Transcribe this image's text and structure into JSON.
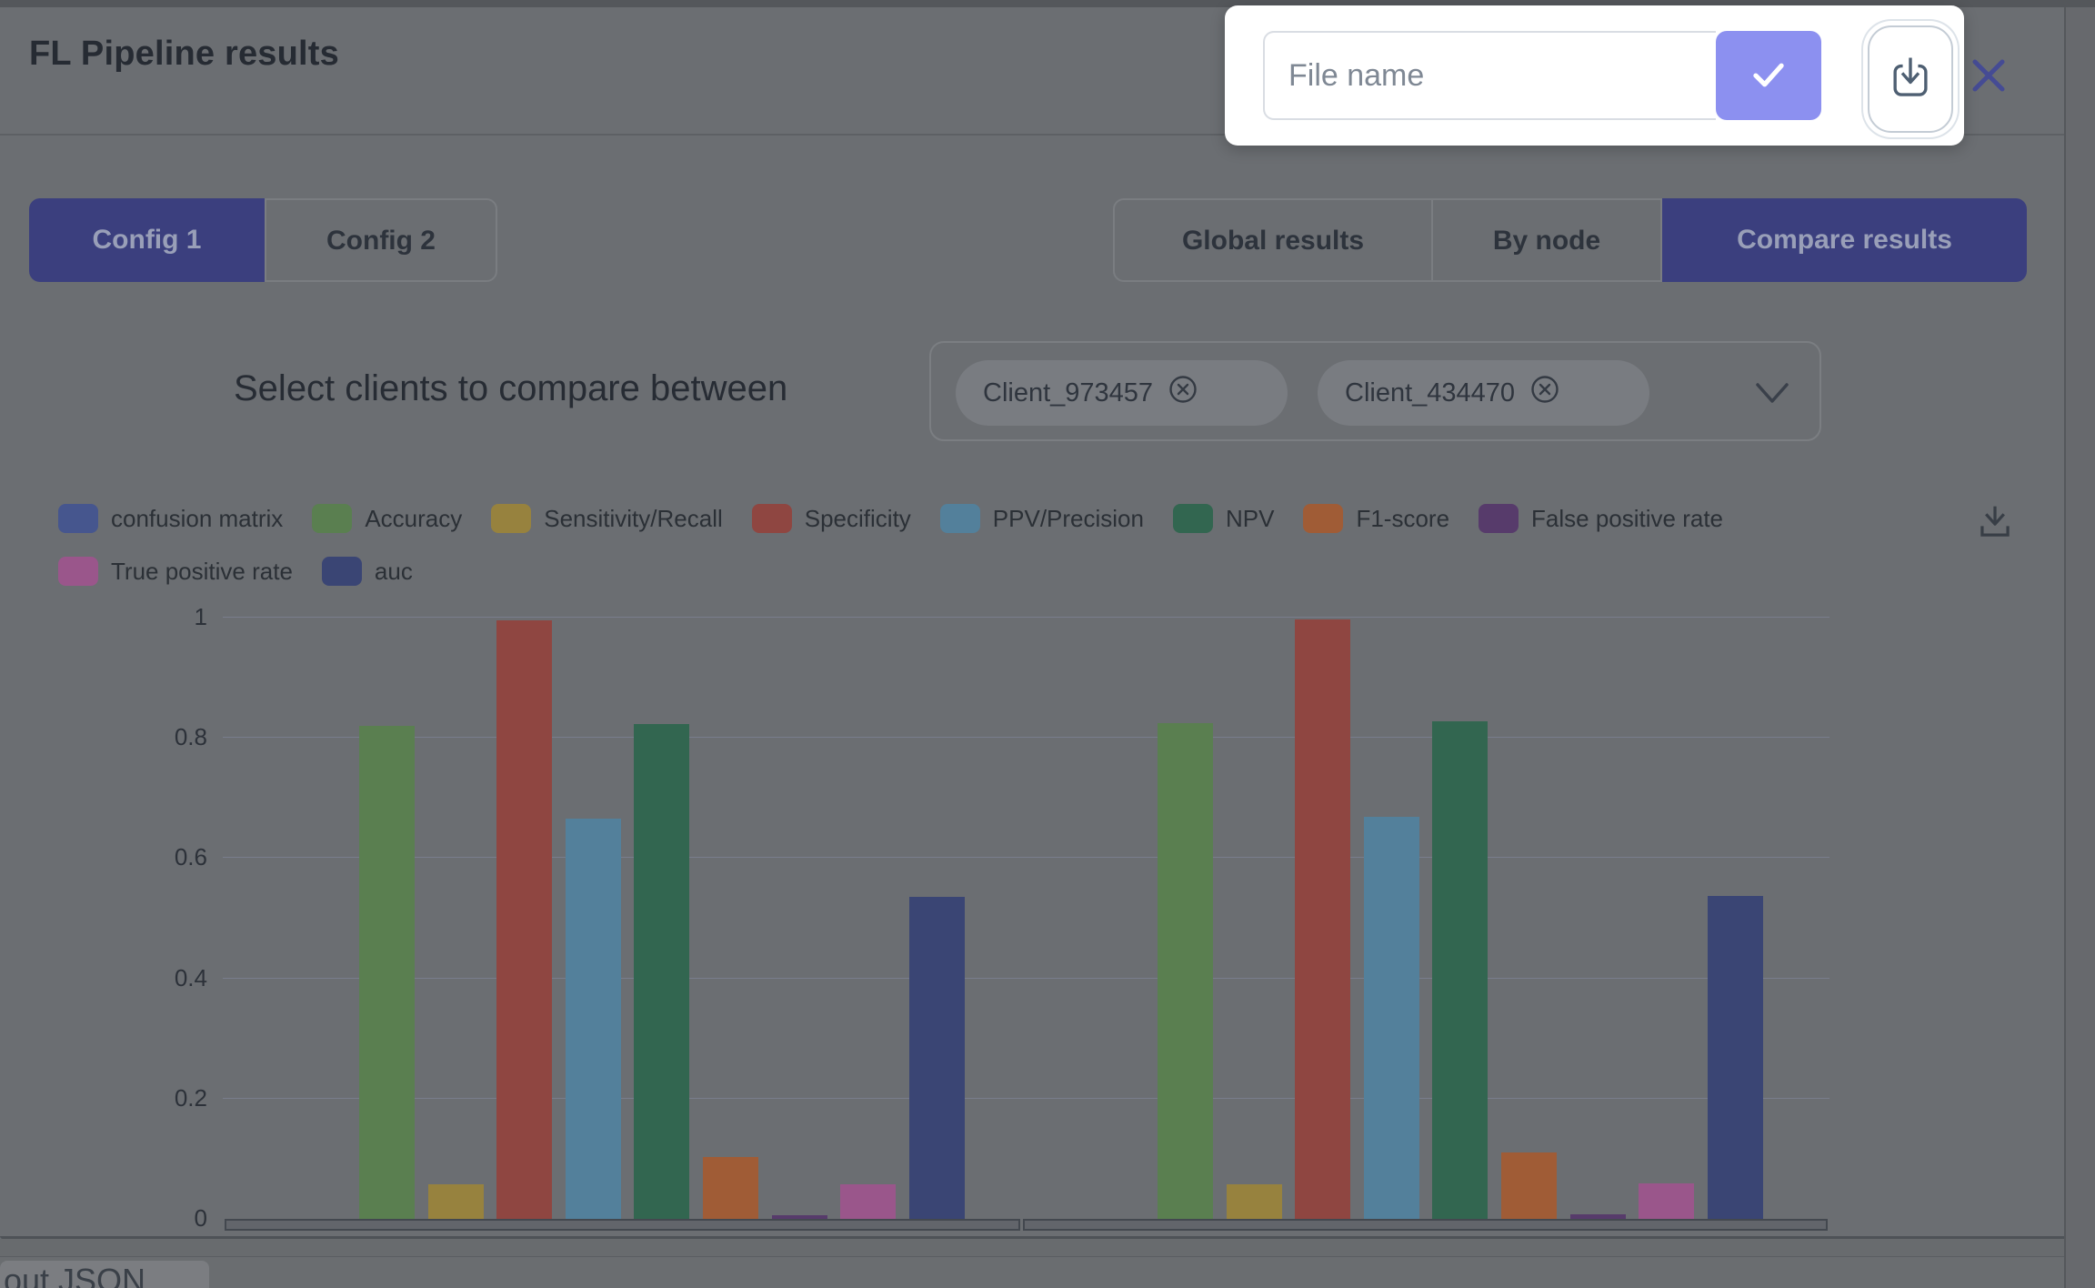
{
  "header": {
    "title": "FL Pipeline results"
  },
  "spotlight": {
    "file_name_input": {
      "placeholder": "File name",
      "value": ""
    },
    "confirm_button": {
      "icon": "check-icon"
    },
    "download_button": {
      "icon": "download-icon"
    }
  },
  "close_button": {
    "icon": "close-icon"
  },
  "config_tabs": [
    {
      "label": "Config 1",
      "active": true
    },
    {
      "label": "Config 2",
      "active": false
    }
  ],
  "view_tabs": [
    {
      "label": "Global results",
      "active": false
    },
    {
      "label": "By node",
      "active": false
    },
    {
      "label": "Compare results",
      "active": true
    }
  ],
  "client_select": {
    "label": "Select clients to compare between",
    "chips": [
      "Client_973457",
      "Client_434470"
    ],
    "chevron": "chevron-down-icon",
    "remove_icon": "circle-x-icon"
  },
  "chart_toolbar": {
    "download_icon": "chart-download-icon"
  },
  "footer": {
    "partial_tab_text": "out JSON"
  },
  "colors": {
    "accent": "#8c90f0",
    "active_tab_bg": "#3b3f7e",
    "spotlight_bg": "#ffffff",
    "close_icon": "#454b94"
  },
  "chart_data": {
    "type": "bar",
    "categories": [
      "Client_973457",
      "Client_434470"
    ],
    "series": [
      {
        "name": "confusion matrix",
        "color": "#46568e",
        "values": [
          0,
          0
        ]
      },
      {
        "name": "Accuracy",
        "color": "#5a7f50",
        "values": [
          0.82,
          0.825
        ]
      },
      {
        "name": "Sensitivity/Recall",
        "color": "#97823e",
        "values": [
          0.057,
          0.058
        ]
      },
      {
        "name": "Specificity",
        "color": "#8f4641",
        "values": [
          0.995,
          0.997
        ]
      },
      {
        "name": "PPV/Precision",
        "color": "#53809b",
        "values": [
          0.665,
          0.668
        ]
      },
      {
        "name": "NPV",
        "color": "#326650",
        "values": [
          0.823,
          0.828
        ]
      },
      {
        "name": "F1-score",
        "color": "#a05c36",
        "values": [
          0.103,
          0.11
        ]
      },
      {
        "name": "False positive rate",
        "color": "#573b6b",
        "values": [
          0.006,
          0.007
        ]
      },
      {
        "name": "True positive rate",
        "color": "#9a568b",
        "values": [
          0.057,
          0.059
        ]
      },
      {
        "name": "auc",
        "color": "#3a4574",
        "values": [
          0.535,
          0.537
        ]
      }
    ],
    "xlabel": "",
    "ylabel": "",
    "ylim": [
      0,
      1
    ],
    "yticks": [
      1,
      0.8,
      0.6,
      0.4,
      0.2,
      0
    ],
    "grid": true,
    "legend_position": "top"
  }
}
